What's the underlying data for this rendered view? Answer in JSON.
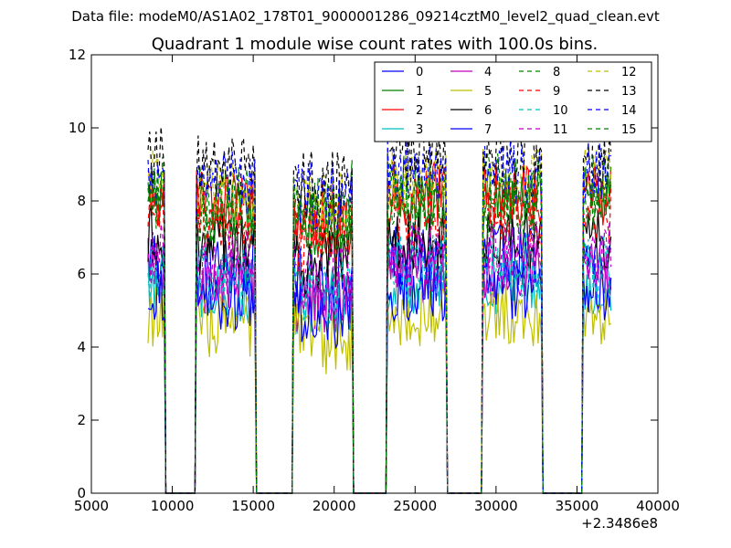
{
  "figure": {
    "suptitle": "Data file: modeM0/AS1A02_178T01_9000001286_09214cztM0_level2_quad_clean.evt"
  },
  "chart_data": {
    "type": "line",
    "title": "Quadrant 1 module wise count rates with 100.0s bins.",
    "xlabel": "",
    "ylabel": "",
    "x_offset_label": "+2.3486e8",
    "xlim": [
      5000,
      40000
    ],
    "ylim": [
      0,
      12
    ],
    "xticks": [
      5000,
      10000,
      15000,
      20000,
      25000,
      30000,
      35000,
      40000
    ],
    "yticks": [
      0,
      2,
      4,
      6,
      8,
      10,
      12
    ],
    "grid": false,
    "legend_position": "top-right",
    "bin_size_s": 100,
    "x_range": [
      8500,
      37100
    ],
    "good_time_intervals": [
      [
        8500,
        9500
      ],
      [
        11500,
        15100
      ],
      [
        17500,
        21100
      ],
      [
        23300,
        26900
      ],
      [
        29200,
        32800
      ],
      [
        35400,
        37100
      ]
    ],
    "series": [
      {
        "name": "0",
        "color": "#0000ff",
        "dash": "solid",
        "level": 6.5
      },
      {
        "name": "1",
        "color": "#008000",
        "dash": "solid",
        "level": 8.0
      },
      {
        "name": "2",
        "color": "#ff0000",
        "dash": "solid",
        "level": 8.2
      },
      {
        "name": "3",
        "color": "#00bfbf",
        "dash": "solid",
        "level": 5.8
      },
      {
        "name": "4",
        "color": "#bf00bf",
        "dash": "solid",
        "level": 6.1
      },
      {
        "name": "5",
        "color": "#bfbf00",
        "dash": "solid",
        "level": 4.9
      },
      {
        "name": "6",
        "color": "#000000",
        "dash": "solid",
        "level": 7.0
      },
      {
        "name": "7",
        "color": "#0000ff",
        "dash": "solid",
        "level": 5.6
      },
      {
        "name": "8",
        "color": "#008000",
        "dash": "dashed",
        "level": 8.4
      },
      {
        "name": "9",
        "color": "#ff0000",
        "dash": "dashed",
        "level": 7.6
      },
      {
        "name": "10",
        "color": "#00bfbf",
        "dash": "dashed",
        "level": 6.2
      },
      {
        "name": "11",
        "color": "#bf00bf",
        "dash": "dashed",
        "level": 6.6
      },
      {
        "name": "12",
        "color": "#bfbf00",
        "dash": "dashed",
        "level": 8.6
      },
      {
        "name": "13",
        "color": "#000000",
        "dash": "dashed",
        "level": 9.2
      },
      {
        "name": "14",
        "color": "#0000ff",
        "dash": "dashed",
        "level": 8.8
      },
      {
        "name": "15",
        "color": "#008000",
        "dash": "dashed",
        "level": 7.9
      }
    ]
  }
}
